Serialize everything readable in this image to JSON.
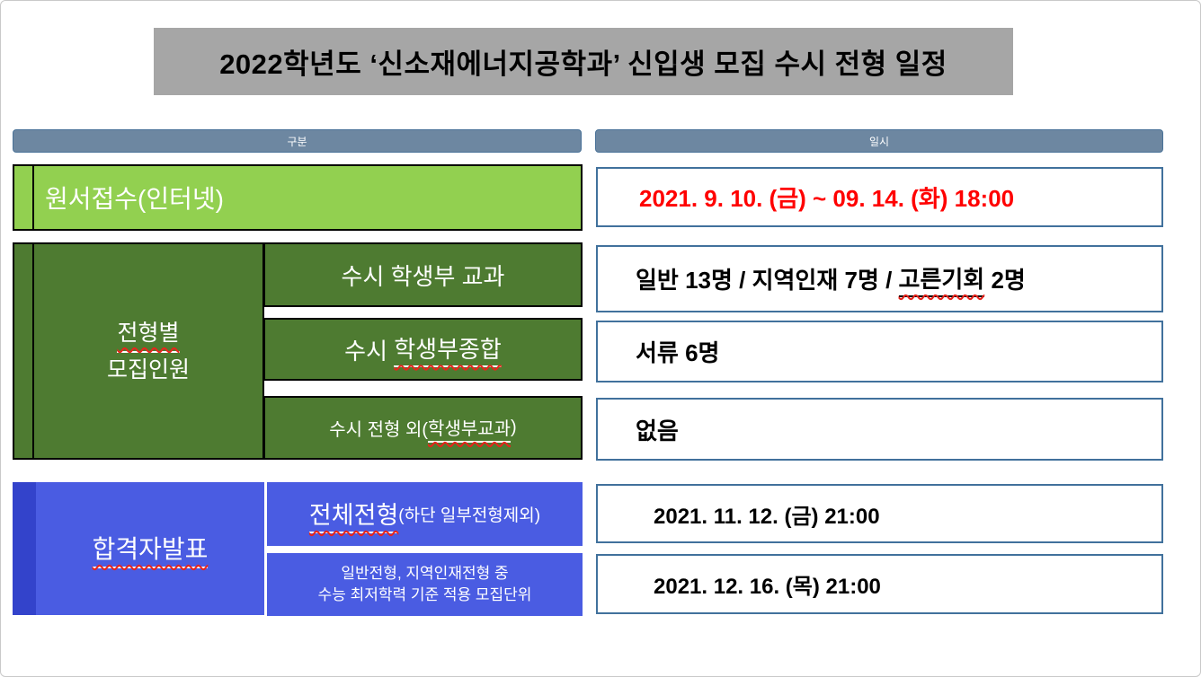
{
  "title": {
    "text": "2022학년도 ‘신소재에너지공학과’ 신입생 모집 수시 전형 일정",
    "bg": "#a6a6a6",
    "color": "#000000"
  },
  "columns": {
    "left_header": "구분",
    "right_header": "일시",
    "header_bg": "#6d87a1",
    "header_border": "#4a7298"
  },
  "colors": {
    "light_green": "#92d050",
    "dark_green": "#4e7b31",
    "blue": "#4a5ce2",
    "blue_strip": "#3343cb",
    "right_cell_border": "#41719c",
    "date_red": "#ff0000",
    "squiggle_red": "#e8241c"
  },
  "rows": {
    "application": {
      "label": "원서접수(인터넷)",
      "value": "2021. 9. 10. (금) ~ 09. 14. (화) 18:00"
    },
    "quota_group": {
      "label_line1": "전형별",
      "label_line2": "모집인원",
      "subrows": [
        {
          "label": "수시 학생부 교과",
          "value_prefix": "일반 13명 / 지역인재 7명 / ",
          "value_marked": "고른기회",
          "value_suffix": " 2명"
        },
        {
          "label_prefix": "수시 ",
          "label_marked": "학생부종합",
          "value": "서류 6명"
        },
        {
          "label_prefix": "수시 전형 외(",
          "label_marked": "학생부교과",
          "label_suffix": ")",
          "value": "없음"
        }
      ]
    },
    "announce_group": {
      "label": "합격자발표",
      "subrows": [
        {
          "label_marked": "전체전형",
          "label_suffix": "(하단 일부전형제외)",
          "value": "2021. 11. 12. (금) 21:00"
        },
        {
          "label_line1": "일반전형, 지역인재전형 중",
          "label_line2": "수능 최저학력 기준 적용 모집단위",
          "value": "2021. 12. 16. (목) 21:00"
        }
      ]
    }
  }
}
